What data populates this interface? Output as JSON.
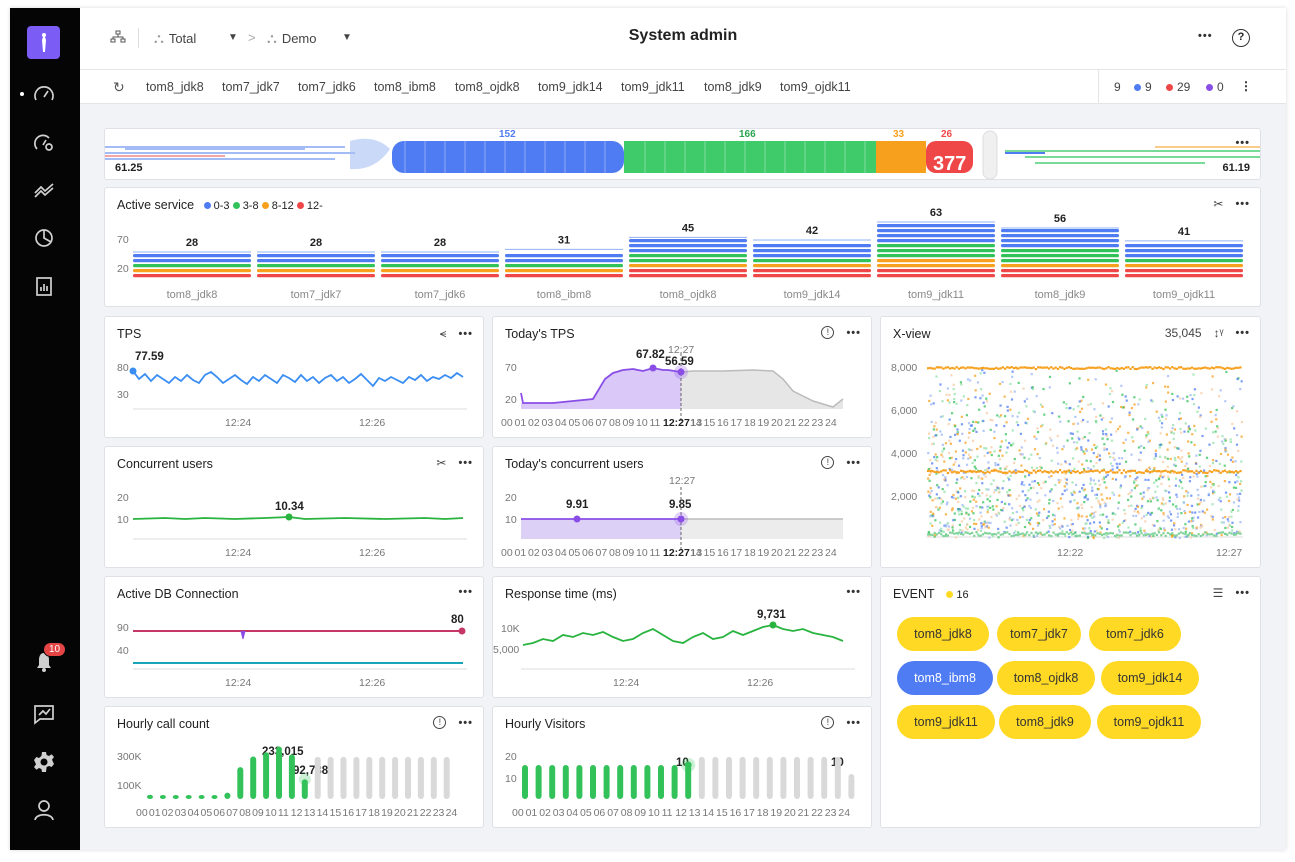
{
  "sidebar": {
    "badge_count": "10"
  },
  "topbar": {
    "title": "System admin",
    "crumbs": [
      {
        "label": "Total"
      },
      {
        "label": "Demo"
      }
    ]
  },
  "tabs": [
    "tom8_jdk8",
    "tom7_jdk7",
    "tom7_jdk6",
    "tom8_ibm8",
    "tom8_ojdk8",
    "tom9_jdk14",
    "tom9_jdk11",
    "tom8_jdk9",
    "tom9_ojdk11"
  ],
  "counts": {
    "total": "9",
    "blue": "9",
    "red": "29",
    "purple": "0"
  },
  "colors": {
    "blue": "#4f7cf2",
    "green": "#33c25a",
    "orange": "#f7a01d",
    "red": "#ef4747",
    "purple": "#8a4ee6",
    "yellow": "#ffd924"
  },
  "flow": {
    "left_value": "61.25",
    "right_value": "61.19",
    "blue_count": "152",
    "green_count": "166",
    "orange_count": "33",
    "red_count": "26",
    "total": "377"
  },
  "active_service": {
    "title": "Active service",
    "legend": [
      "0-3",
      "3-8",
      "8-12",
      "12-"
    ],
    "y_ticks": [
      "70",
      "20"
    ],
    "chart_data": {
      "type": "bar",
      "categories": [
        "tom8_jdk8",
        "tom7_jdk7",
        "tom7_jdk6",
        "tom8_ibm8",
        "tom8_ojdk8",
        "tom9_jdk14",
        "tom9_jdk11",
        "tom8_jdk9",
        "tom9_ojdk11"
      ],
      "values": [
        28,
        28,
        28,
        31,
        45,
        42,
        63,
        56,
        41
      ]
    }
  },
  "tps": {
    "title": "TPS",
    "value_label": "77.59",
    "y_ticks": [
      "80",
      "30"
    ],
    "x_ticks": [
      "12:24",
      "12:26"
    ]
  },
  "today_tps": {
    "title": "Today's TPS",
    "peak_label": "67.82",
    "cursor_time": "12:27",
    "cursor_value": "56.59",
    "y_ticks": [
      "70",
      "20"
    ],
    "hours": [
      "00",
      "01",
      "02",
      "03",
      "04",
      "05",
      "06",
      "07",
      "08",
      "09",
      "10",
      "11",
      "12",
      "13",
      "14",
      "15",
      "16",
      "17",
      "18",
      "19",
      "20",
      "21",
      "22",
      "23",
      "24"
    ],
    "bold_hour": "12:27"
  },
  "xview": {
    "title": "X-view",
    "count": "35,045",
    "y_ticks": [
      "8,000",
      "6,000",
      "4,000",
      "2,000"
    ],
    "x_ticks": [
      "12:22",
      "12:27"
    ]
  },
  "concurrent": {
    "title": "Concurrent users",
    "value_label": "10.34",
    "y_ticks": [
      "20",
      "10"
    ],
    "x_ticks": [
      "12:24",
      "12:26"
    ]
  },
  "today_concurrent": {
    "title": "Today's concurrent users",
    "peak_label": "9.91",
    "cursor_time": "12:27",
    "cursor_value": "9.85",
    "y_ticks": [
      "20",
      "10"
    ]
  },
  "db": {
    "title": "Active DB Connection",
    "value_label": "80",
    "y_ticks": [
      "90",
      "40"
    ],
    "x_ticks": [
      "12:24",
      "12:26"
    ]
  },
  "response": {
    "title": "Response time (ms)",
    "value_label": "9,731",
    "y_ticks": [
      "10K",
      "5,000"
    ],
    "x_ticks": [
      "12:24",
      "12:26"
    ]
  },
  "event": {
    "title": "EVENT",
    "count": "16",
    "items": [
      {
        "label": "tom8_jdk8"
      },
      {
        "label": "tom7_jdk7"
      },
      {
        "label": "tom7_jdk6"
      },
      {
        "label": "tom8_ibm8"
      },
      {
        "label": "tom8_ojdk8"
      },
      {
        "label": "tom9_jdk14"
      },
      {
        "label": "tom9_jdk11"
      },
      {
        "label": "tom8_jdk9"
      },
      {
        "label": "tom9_ojdk11"
      }
    ]
  },
  "hourly_calls": {
    "title": "Hourly call count",
    "peak_label": "233,015",
    "current_label": "92,738",
    "y_ticks": [
      "300K",
      "100K"
    ],
    "chart_data": {
      "type": "bar",
      "x": [
        "00",
        "01",
        "02",
        "03",
        "04",
        "05",
        "06",
        "07",
        "08",
        "09",
        "10",
        "11",
        "12"
      ],
      "values": [
        20000,
        15000,
        12000,
        10000,
        10000,
        12000,
        30000,
        150000,
        200000,
        220000,
        233015,
        210000,
        92738
      ]
    }
  },
  "hourly_visitors": {
    "title": "Hourly Visitors",
    "current_label": "10",
    "end_label": "10",
    "y_ticks": [
      "20",
      "10"
    ],
    "chart_data": {
      "type": "bar",
      "x": [
        "00",
        "01",
        "02",
        "03",
        "04",
        "05",
        "06",
        "07",
        "08",
        "09",
        "10",
        "11",
        "12"
      ],
      "values": [
        10,
        10,
        10,
        10,
        10,
        10,
        10,
        10,
        10,
        10,
        10,
        10,
        10
      ]
    }
  }
}
